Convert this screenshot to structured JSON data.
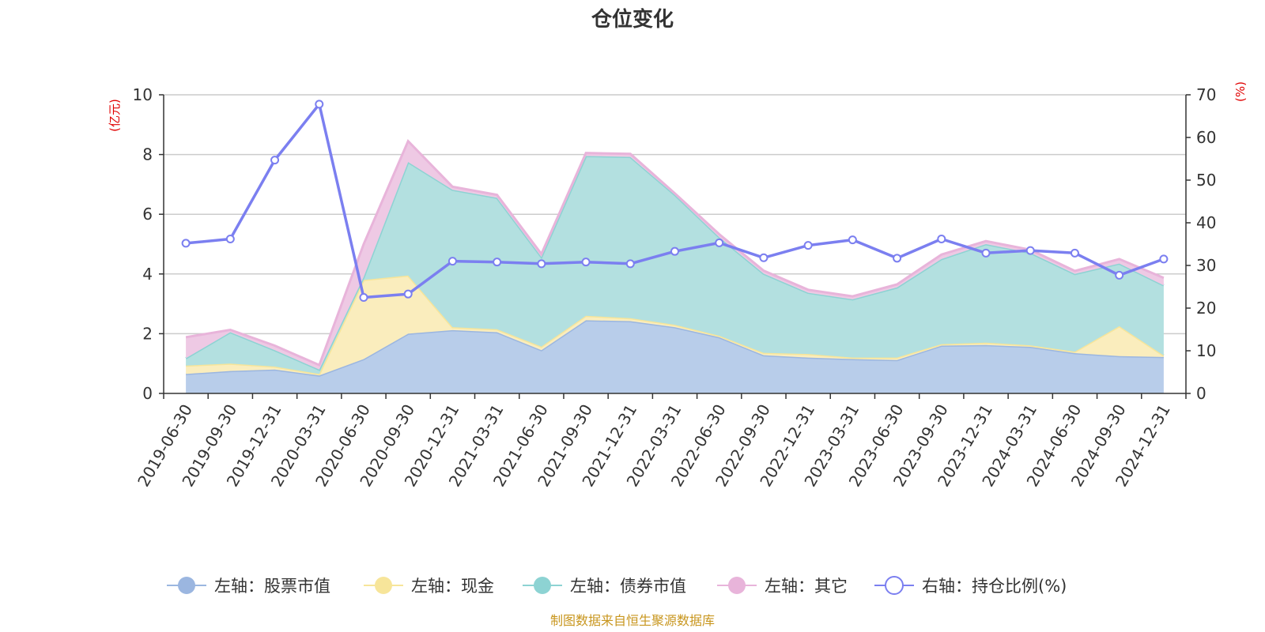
{
  "chart_data": {
    "type": "area",
    "title": "仓位变化",
    "left_unit": "(亿元)",
    "right_unit": "(%)",
    "categories": [
      "2019-06-30",
      "2019-09-30",
      "2019-12-31",
      "2020-03-31",
      "2020-06-30",
      "2020-09-30",
      "2020-12-31",
      "2021-03-31",
      "2021-06-30",
      "2021-09-30",
      "2021-12-31",
      "2022-03-31",
      "2022-06-30",
      "2022-09-30",
      "2022-12-31",
      "2023-03-31",
      "2023-06-30",
      "2023-09-30",
      "2023-12-31",
      "2024-03-31",
      "2024-06-30",
      "2024-09-30",
      "2024-12-31"
    ],
    "left_axis": {
      "min": 0,
      "max": 10,
      "ticks": [
        "0",
        "2",
        "4",
        "6",
        "8",
        "10"
      ]
    },
    "right_axis": {
      "min": 0,
      "max": 70,
      "ticks": [
        "0",
        "10",
        "20",
        "30",
        "40",
        "50",
        "60",
        "70"
      ]
    },
    "series": [
      {
        "name": "左轴：股票市值",
        "axis": "left",
        "kind": "stacked-area",
        "color": "#9bb6e0",
        "fill": "#b8cdea",
        "values": [
          0.65,
          0.75,
          0.8,
          0.6,
          1.15,
          2.0,
          2.12,
          2.05,
          1.45,
          2.45,
          2.42,
          2.22,
          1.88,
          1.28,
          1.2,
          1.15,
          1.12,
          1.6,
          1.62,
          1.56,
          1.35,
          1.25,
          1.22
        ]
      },
      {
        "name": "左轴：现金",
        "axis": "left",
        "kind": "stacked-area",
        "color": "#f7e59a",
        "fill": "#faedbd",
        "values": [
          0.28,
          0.25,
          0.1,
          0.05,
          2.65,
          1.95,
          0.1,
          0.1,
          0.12,
          0.15,
          0.1,
          0.08,
          0.05,
          0.08,
          0.12,
          0.05,
          0.08,
          0.05,
          0.08,
          0.05,
          0.05,
          1.0,
          0.05
        ]
      },
      {
        "name": "左轴：债券市值",
        "axis": "left",
        "kind": "stacked-area",
        "color": "#8dd3d3",
        "fill": "#b3e0e0",
        "values": [
          0.25,
          1.05,
          0.55,
          0.15,
          0.1,
          3.8,
          4.6,
          4.4,
          3.0,
          5.35,
          5.4,
          4.35,
          3.3,
          2.65,
          2.05,
          1.95,
          2.35,
          2.85,
          3.3,
          3.1,
          2.6,
          2.1,
          2.35
        ]
      },
      {
        "name": "左轴：其它",
        "axis": "left",
        "kind": "stacked-area",
        "color": "#e8b4da",
        "fill": "#eec9e4",
        "values": [
          0.7,
          0.08,
          0.15,
          0.15,
          1.1,
          0.7,
          0.1,
          0.1,
          0.1,
          0.1,
          0.1,
          0.05,
          0.1,
          0.1,
          0.1,
          0.1,
          0.1,
          0.15,
          0.1,
          0.1,
          0.1,
          0.15,
          0.25
        ]
      },
      {
        "name": "右轴：持仓比例(%)",
        "axis": "right",
        "kind": "line",
        "color": "#7b7ff0",
        "values": [
          35.2,
          36.2,
          54.7,
          67.8,
          22.5,
          23.3,
          31.0,
          30.8,
          30.4,
          30.8,
          30.4,
          33.3,
          35.3,
          31.8,
          34.7,
          36.0,
          31.7,
          36.2,
          32.9,
          33.5,
          32.9,
          27.7,
          31.5
        ]
      }
    ],
    "legend_position": "bottom",
    "grid": true
  },
  "source_text": "制图数据来自恒生聚源数据库",
  "colors": {
    "axis": "#333333",
    "grid": "#cccccc",
    "unit_label": "#e00000",
    "source": "#c8961e"
  }
}
